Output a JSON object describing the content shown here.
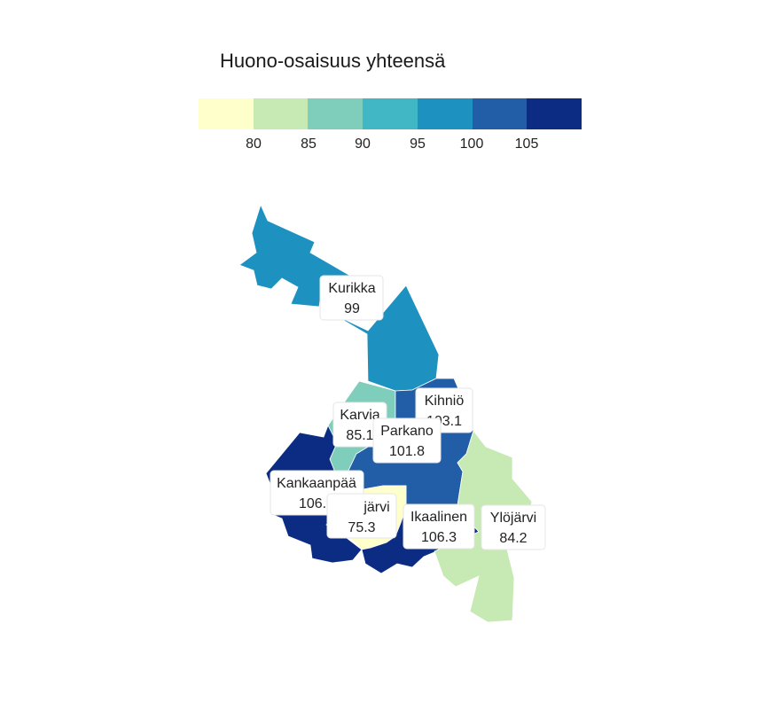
{
  "title": "Huono-osaisuus yhteensä",
  "legend": {
    "colors": [
      "#ffffcc",
      "#c7e9b4",
      "#7fcdbb",
      "#41b6c4",
      "#1d91c0",
      "#225ea8",
      "#0c2c84"
    ],
    "ticks": [
      "80",
      "85",
      "90",
      "95",
      "100",
      "105"
    ]
  },
  "regions": [
    {
      "name": "Kurikka",
      "value": "99",
      "color": "#1d91c0"
    },
    {
      "name": "Kihniö",
      "value": "103.1",
      "color": "#225ea8"
    },
    {
      "name": "Karvia",
      "value": "85.1",
      "color": "#7fcdbb"
    },
    {
      "name": "Parkano",
      "value": "101.8",
      "color": "#225ea8"
    },
    {
      "name": "Kankaanpää",
      "value": "106.5",
      "color": "#0c2c84"
    },
    {
      "name": "järvi",
      "value": "75.3",
      "color": "#ffffcc"
    },
    {
      "name": "Ikaalinen",
      "value": "106.3",
      "color": "#0c2c84"
    },
    {
      "name": "Ylöjärvi",
      "value": "84.2",
      "color": "#c7e9b4"
    }
  ]
}
